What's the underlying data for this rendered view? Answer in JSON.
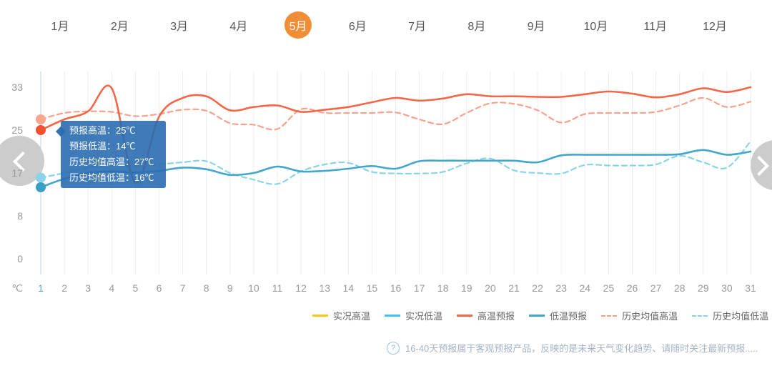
{
  "months": {
    "items": [
      {
        "label": "1月"
      },
      {
        "label": "2月"
      },
      {
        "label": "3月"
      },
      {
        "label": "4月"
      },
      {
        "label": "5月"
      },
      {
        "label": "6月"
      },
      {
        "label": "7月"
      },
      {
        "label": "8月"
      },
      {
        "label": "9月"
      },
      {
        "label": "10月"
      },
      {
        "label": "11月"
      },
      {
        "label": "12月"
      }
    ],
    "active_index": 4
  },
  "chart_data": {
    "type": "line",
    "x": [
      1,
      2,
      3,
      4,
      5,
      6,
      7,
      8,
      9,
      10,
      11,
      12,
      13,
      14,
      15,
      16,
      17,
      18,
      19,
      20,
      21,
      22,
      23,
      24,
      25,
      26,
      27,
      28,
      29,
      30,
      31
    ],
    "x_axis": {
      "highlight_day": 1
    },
    "y_axis": {
      "ticks": [
        33,
        25,
        17,
        8,
        0
      ],
      "unit": "℃"
    },
    "series": [
      {
        "name": "实况高温",
        "color": "#f5c712",
        "dash": false,
        "values": []
      },
      {
        "name": "实况低温",
        "color": "#3fc6f0",
        "dash": false,
        "values": []
      },
      {
        "name": "高温预报",
        "color": "#f56647",
        "dash": false,
        "values": [
          25,
          27,
          28.5,
          32.8,
          15,
          27.5,
          31,
          31.3,
          28.7,
          29.3,
          29.6,
          28.4,
          28.8,
          29.3,
          30.2,
          31,
          30.5,
          30.9,
          31.7,
          31.3,
          31.3,
          31.2,
          31.2,
          31.7,
          32.2,
          31.8,
          31.1,
          31.7,
          32.8,
          32.1,
          33
        ]
      },
      {
        "name": "低温预报",
        "color": "#42a7cc",
        "dash": false,
        "values": [
          14,
          15.8,
          17,
          17.3,
          17.1,
          17.4,
          18,
          17.7,
          16.6,
          17,
          18.2,
          17.3,
          17.4,
          17.8,
          18.3,
          17.8,
          19.2,
          19.3,
          19.3,
          19.3,
          19.3,
          19,
          20.3,
          20.4,
          20.4,
          20.4,
          20.4,
          20.5,
          21.3,
          20.4,
          21
        ]
      },
      {
        "name": "历史均值高温",
        "color": "#f8a28e",
        "dash": true,
        "values": [
          27,
          28.2,
          28.5,
          28.4,
          27.6,
          28,
          28.8,
          28.6,
          26.3,
          26,
          25.2,
          28.9,
          28.2,
          28.2,
          28.2,
          28.3,
          27,
          26.1,
          28.2,
          30,
          29.9,
          28.7,
          26.4,
          28,
          28.2,
          28.2,
          28.4,
          29.6,
          31,
          29.3,
          30.3
        ]
      },
      {
        "name": "历史均值低温",
        "color": "#8ad3ea",
        "dash": true,
        "values": [
          16,
          17,
          18,
          18.5,
          18.3,
          18.6,
          19,
          19.2,
          17,
          15.6,
          14.7,
          17.3,
          18.6,
          18.9,
          17.2,
          16.9,
          16.9,
          17.2,
          18.8,
          19.7,
          17.5,
          17,
          16.9,
          18.5,
          18.4,
          18.4,
          18.6,
          20.2,
          19,
          18,
          22.9
        ]
      }
    ],
    "day1_markers": [
      {
        "series": "历史均值高温",
        "value": 27,
        "color": "#f9a58f"
      },
      {
        "series": "预报高温",
        "value": 25,
        "color": "#f4522e"
      },
      {
        "series": "历史均值低温",
        "value": 16,
        "color": "#8ad3ea"
      },
      {
        "series": "预报低温",
        "value": 14,
        "color": "#3a9fc5"
      }
    ]
  },
  "tooltip": {
    "lines": [
      {
        "text": "预报高温：25℃"
      },
      {
        "text": "预报低温：14℃"
      },
      {
        "text": "历史均值高温：27℃"
      },
      {
        "text": "历史均值低温：16℃"
      }
    ]
  },
  "footer": {
    "icon": "question-circle",
    "question_mark": "?",
    "text": "16-40天预报属于客观预报产品，反映的是未来天气变化趋势、请随时关注最新预报....."
  },
  "colors": {
    "month_active_bg": "#f18d35",
    "grid": "#ececec",
    "axis_line": "#bfd4e1",
    "tick_text": "#999999",
    "day_highlight": "#56a4d8",
    "legend_text": "#666666",
    "tooltip_bg": "#2a6cb1",
    "nav_circle": "#c8c8c8",
    "footer_text": "#a6b3c2"
  }
}
